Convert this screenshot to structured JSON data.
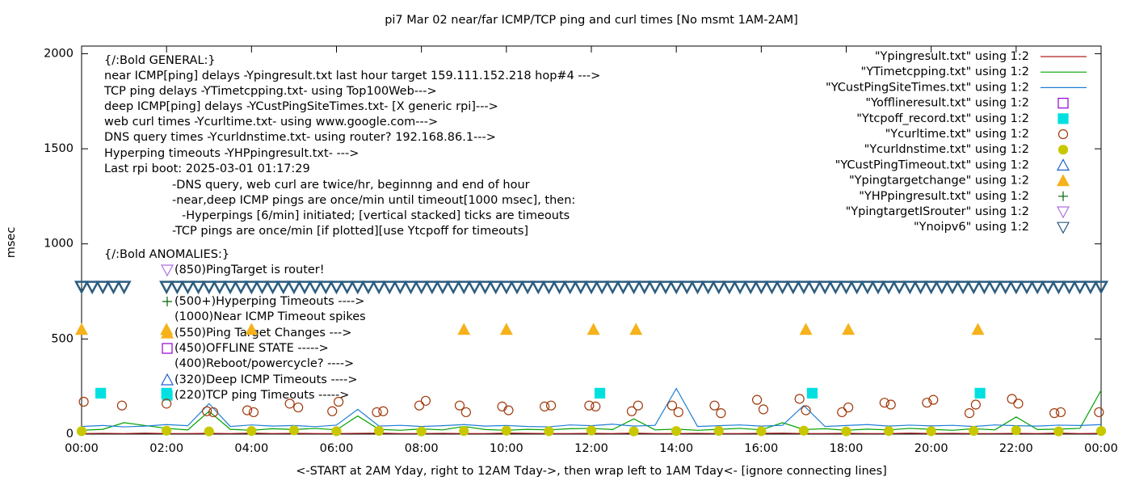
{
  "chart_data": {
    "type": "line",
    "title": "pi7 Mar 02  near/far ICMP/TCP ping and curl times [No msmt 1AM-2AM]",
    "xlabel": "<-START at 2AM Yday, right to 12AM Tday->, then wrap left to 1AM Tday<- [ignore connecting lines]",
    "ylabel": "msec",
    "xlim": [
      0,
      24
    ],
    "ylim": [
      0,
      2040
    ],
    "xticks": [
      {
        "value": 0,
        "label": "00:00"
      },
      {
        "value": 2,
        "label": "02:00"
      },
      {
        "value": 4,
        "label": "04:00"
      },
      {
        "value": 6,
        "label": "06:00"
      },
      {
        "value": 8,
        "label": "08:00"
      },
      {
        "value": 10,
        "label": "10:00"
      },
      {
        "value": 12,
        "label": "12:00"
      },
      {
        "value": 14,
        "label": "14:00"
      },
      {
        "value": 16,
        "label": "16:00"
      },
      {
        "value": 18,
        "label": "18:00"
      },
      {
        "value": 20,
        "label": "20:00"
      },
      {
        "value": 22,
        "label": "22:00"
      },
      {
        "value": 24,
        "label": "00:00"
      }
    ],
    "yticks": [
      0,
      500,
      1000,
      1500,
      2000
    ],
    "legend": "top-right",
    "annotations": [
      "{/:Bold GENERAL:}",
      "near ICMP[ping] delays -Ypingresult.txt last hour target 159.111.152.218 hop#4 --->",
      "TCP ping delays -YTimetcpping.txt- using Top100Web--->",
      "deep ICMP[ping] delays -YCustPingSiteTimes.txt- [X generic rpi]--->",
      "web curl times -Ycurltime.txt- using www.google.com--->",
      "DNS query times -Ycurldnstime.txt- using router? 192.168.86.1--->",
      "Hyperping timeouts -YHPpingresult.txt- --->",
      "Last rpi boot: 2025-03-01 01:17:29",
      "-DNS query, web curl are twice/hr, beginnng and end of hour",
      "-near,deep ICMP pings are once/min until timeout[1000 msec], then:",
      "-Hyperpings [6/min] initiated; [vertical stacked] ticks are timeouts",
      "-TCP pings are once/min [if plotted][use Ytcpoff for timeouts]",
      "{/:Bold ANOMALIES:}",
      "(850)PingTarget is router!",
      "(500+)Hyperping Timeouts ---->",
      "(1000)Near ICMP Timeout spikes",
      "(550)Ping Target Changes --->",
      "(450)OFFLINE STATE ----->",
      "(400)Reboot/powercycle? ---->",
      "(320)Deep ICMP Timeouts ---->",
      "(220)TCP ping Timeouts ----->"
    ],
    "series": [
      {
        "name": "\"Ypingresult.txt\" using 1:2",
        "style": "lines",
        "color": "#b22222",
        "x": [
          0,
          0.5,
          1,
          1.5,
          2,
          2.5,
          3,
          3.5,
          4,
          4.5,
          5,
          5.5,
          6,
          6.5,
          7,
          7.5,
          8,
          8.5,
          9,
          9.5,
          10,
          10.5,
          11,
          11.5,
          12,
          12.5,
          13,
          13.5,
          14,
          14.5,
          15,
          15.5,
          16,
          16.5,
          17,
          17.5,
          18,
          18.5,
          19,
          19.5,
          20,
          20.5,
          21,
          21.5,
          22,
          22.5,
          23,
          23.5,
          24
        ],
        "values": [
          3,
          4,
          3,
          5,
          3,
          3,
          4,
          3,
          5,
          3,
          4,
          3,
          3,
          4,
          5,
          3,
          3,
          4,
          3,
          3,
          5,
          4,
          3,
          3,
          4,
          3,
          5,
          3,
          3,
          4,
          3,
          3,
          4,
          5,
          3,
          3,
          4,
          3,
          3,
          5,
          3,
          4,
          3,
          3,
          4,
          3,
          5,
          3,
          4
        ]
      },
      {
        "name": "\"YTimetcpping.txt\" using 1:2",
        "style": "lines",
        "color": "#00a000",
        "x": [
          0,
          0.5,
          1,
          1.5,
          2,
          2.5,
          3,
          3.5,
          4,
          4.5,
          5,
          5.5,
          6,
          6.5,
          7,
          7.5,
          8,
          8.5,
          9,
          9.5,
          10,
          10.5,
          11,
          11.5,
          12,
          12.5,
          13,
          13.5,
          14,
          14.5,
          15,
          15.5,
          16,
          16.5,
          17,
          17.5,
          18,
          18.5,
          19,
          19.5,
          20,
          20.5,
          21,
          21.5,
          22,
          22.5,
          23,
          23.5,
          24
        ],
        "values": [
          20,
          25,
          60,
          45,
          30,
          22,
          120,
          25,
          20,
          28,
          24,
          30,
          22,
          95,
          25,
          20,
          27,
          22,
          40,
          24,
          20,
          25,
          22,
          28,
          30,
          24,
          80,
          22,
          26,
          20,
          25,
          30,
          22,
          60,
          24,
          28,
          20,
          26,
          22,
          30,
          25,
          20,
          28,
          22,
          90,
          24,
          26,
          30,
          230
        ]
      },
      {
        "name": "\"YCustPingSiteTimes.txt\" using 1:2",
        "style": "lines",
        "color": "#1f7fd6",
        "x": [
          0,
          0.5,
          1,
          1.5,
          2,
          2.5,
          3,
          3.5,
          4,
          4.5,
          5,
          5.5,
          6,
          6.5,
          7,
          7.5,
          8,
          8.5,
          9,
          9.5,
          10,
          10.5,
          11,
          11.5,
          12,
          12.5,
          13,
          13.5,
          14,
          14.5,
          15,
          15.5,
          16,
          16.5,
          17,
          17.5,
          18,
          18.5,
          19,
          19.5,
          20,
          20.5,
          21,
          21.5,
          22,
          22.5,
          23,
          23.5,
          24
        ],
        "values": [
          40,
          45,
          38,
          42,
          50,
          44,
          160,
          40,
          48,
          42,
          45,
          39,
          47,
          130,
          42,
          46,
          40,
          44,
          50,
          42,
          45,
          40,
          38,
          48,
          44,
          52,
          42,
          46,
          240,
          40,
          44,
          48,
          42,
          46,
          150,
          40,
          45,
          50,
          42,
          47,
          43,
          46,
          40,
          48,
          44,
          42,
          47,
          45,
          50
        ]
      },
      {
        "name": "\"Yofflineresult.txt\" using 1:2",
        "style": "points",
        "marker": "square-open",
        "color": "#9400d3",
        "x": [],
        "values": []
      },
      {
        "name": "\"Ytcpoff_record.txt\" using 1:2",
        "style": "points",
        "marker": "square-filled",
        "color": "#00e0e0",
        "x": [
          0.45,
          2.0,
          12.2,
          17.2,
          21.15
        ],
        "values": [
          215,
          215,
          215,
          215,
          215
        ]
      },
      {
        "name": "\"Ycurltime.txt\" using 1:2",
        "style": "points",
        "marker": "circle-open",
        "color": "#a0380a",
        "x": [
          0.05,
          0.95,
          2.0,
          2.95,
          3.1,
          3.9,
          4.05,
          4.9,
          5.1,
          5.9,
          6.05,
          6.95,
          7.1,
          7.95,
          8.1,
          8.9,
          9.05,
          9.9,
          10.05,
          10.9,
          11.05,
          11.95,
          12.1,
          12.95,
          13.1,
          13.9,
          14.05,
          14.9,
          15.05,
          15.9,
          16.05,
          16.9,
          17.05,
          17.9,
          18.05,
          18.9,
          19.05,
          19.9,
          20.05,
          20.9,
          21.05,
          21.9,
          22.05,
          22.9,
          23.05,
          23.95
        ],
        "values": [
          170,
          150,
          160,
          120,
          115,
          125,
          115,
          160,
          140,
          120,
          170,
          115,
          120,
          150,
          175,
          150,
          115,
          145,
          125,
          145,
          150,
          150,
          145,
          120,
          150,
          150,
          115,
          150,
          110,
          180,
          130,
          185,
          125,
          115,
          140,
          165,
          155,
          165,
          180,
          110,
          155,
          185,
          160,
          110,
          115,
          115
        ]
      },
      {
        "name": "\"Ycurldnstime.txt\" using 1:2",
        "style": "points",
        "marker": "circle-filled",
        "color": "#c8c800",
        "x": [
          0,
          2,
          3,
          4,
          5,
          6,
          7,
          8,
          9,
          10,
          11,
          12,
          13,
          14,
          15,
          16,
          17,
          18,
          19,
          20,
          21,
          22,
          23,
          24
        ],
        "values": [
          15,
          18,
          14,
          16,
          20,
          15,
          17,
          14,
          16,
          18,
          15,
          19,
          14,
          16,
          17,
          15,
          18,
          14,
          16,
          15,
          17,
          20,
          14,
          16
        ]
      },
      {
        "name": "\"YCustPingTimeout.txt\" using 1:2",
        "style": "points",
        "marker": "triangle-up-open",
        "color": "#2060d0",
        "x": [],
        "values": []
      },
      {
        "name": "\"Ypingtargetchange\" using 1:2",
        "style": "points",
        "marker": "triangle-up-filled",
        "color": "#f5b21b",
        "x": [
          0,
          2,
          4,
          9,
          10,
          12.05,
          13.05,
          17.05,
          18.05,
          21.1
        ],
        "values": [
          550,
          550,
          550,
          550,
          550,
          550,
          550,
          550,
          550,
          550
        ]
      },
      {
        "name": "\"YHPpingresult.txt\" using 1:2",
        "style": "points",
        "marker": "plus",
        "color": "#006400",
        "x": [],
        "values": []
      },
      {
        "name": "\"YpingtargetISrouter\" using 1:2",
        "style": "points",
        "marker": "triangle-down-open",
        "color": "#b070e0",
        "x": [],
        "values": []
      },
      {
        "name": "\"Ynoipv6\" using 1:2",
        "style": "points",
        "marker": "triangle-down-open",
        "color": "#2c5d80",
        "x": [
          0,
          0.25,
          0.5,
          0.75,
          1.0,
          2,
          2.25,
          2.5,
          2.75,
          3,
          3.25,
          3.5,
          3.75,
          4,
          4.25,
          4.5,
          4.75,
          5,
          5.25,
          5.5,
          5.75,
          6,
          6.25,
          6.5,
          6.75,
          7,
          7.25,
          7.5,
          7.75,
          8,
          8.25,
          8.5,
          8.75,
          9,
          9.25,
          9.5,
          9.75,
          10,
          10.25,
          10.5,
          10.75,
          11,
          11.25,
          11.5,
          11.75,
          12,
          12.25,
          12.5,
          12.75,
          13,
          13.25,
          13.5,
          13.75,
          14,
          14.25,
          14.5,
          14.75,
          15,
          15.25,
          15.5,
          15.75,
          16,
          16.25,
          16.5,
          16.75,
          17,
          17.25,
          17.5,
          17.75,
          18,
          18.25,
          18.5,
          18.75,
          19,
          19.25,
          19.5,
          19.75,
          20,
          20.25,
          20.5,
          20.75,
          21,
          21.25,
          21.5,
          21.75,
          22,
          22.25,
          22.5,
          22.75,
          23,
          23.25,
          23.5,
          23.75,
          24
        ],
        "values": [
          775,
          775,
          775,
          775,
          775,
          775,
          775,
          775,
          775,
          775,
          775,
          775,
          775,
          775,
          775,
          775,
          775,
          775,
          775,
          775,
          775,
          775,
          775,
          775,
          775,
          775,
          775,
          775,
          775,
          775,
          775,
          775,
          775,
          775,
          775,
          775,
          775,
          775,
          775,
          775,
          775,
          775,
          775,
          775,
          775,
          775,
          775,
          775,
          775,
          775,
          775,
          775,
          775,
          775,
          775,
          775,
          775,
          775,
          775,
          775,
          775,
          775,
          775,
          775,
          775,
          775,
          775,
          775,
          775,
          775,
          775,
          775,
          775,
          775,
          775,
          775,
          775,
          775,
          775,
          775,
          775,
          775,
          775,
          775,
          775,
          775,
          775,
          775,
          775,
          775,
          775,
          775,
          775,
          775
        ]
      }
    ]
  }
}
